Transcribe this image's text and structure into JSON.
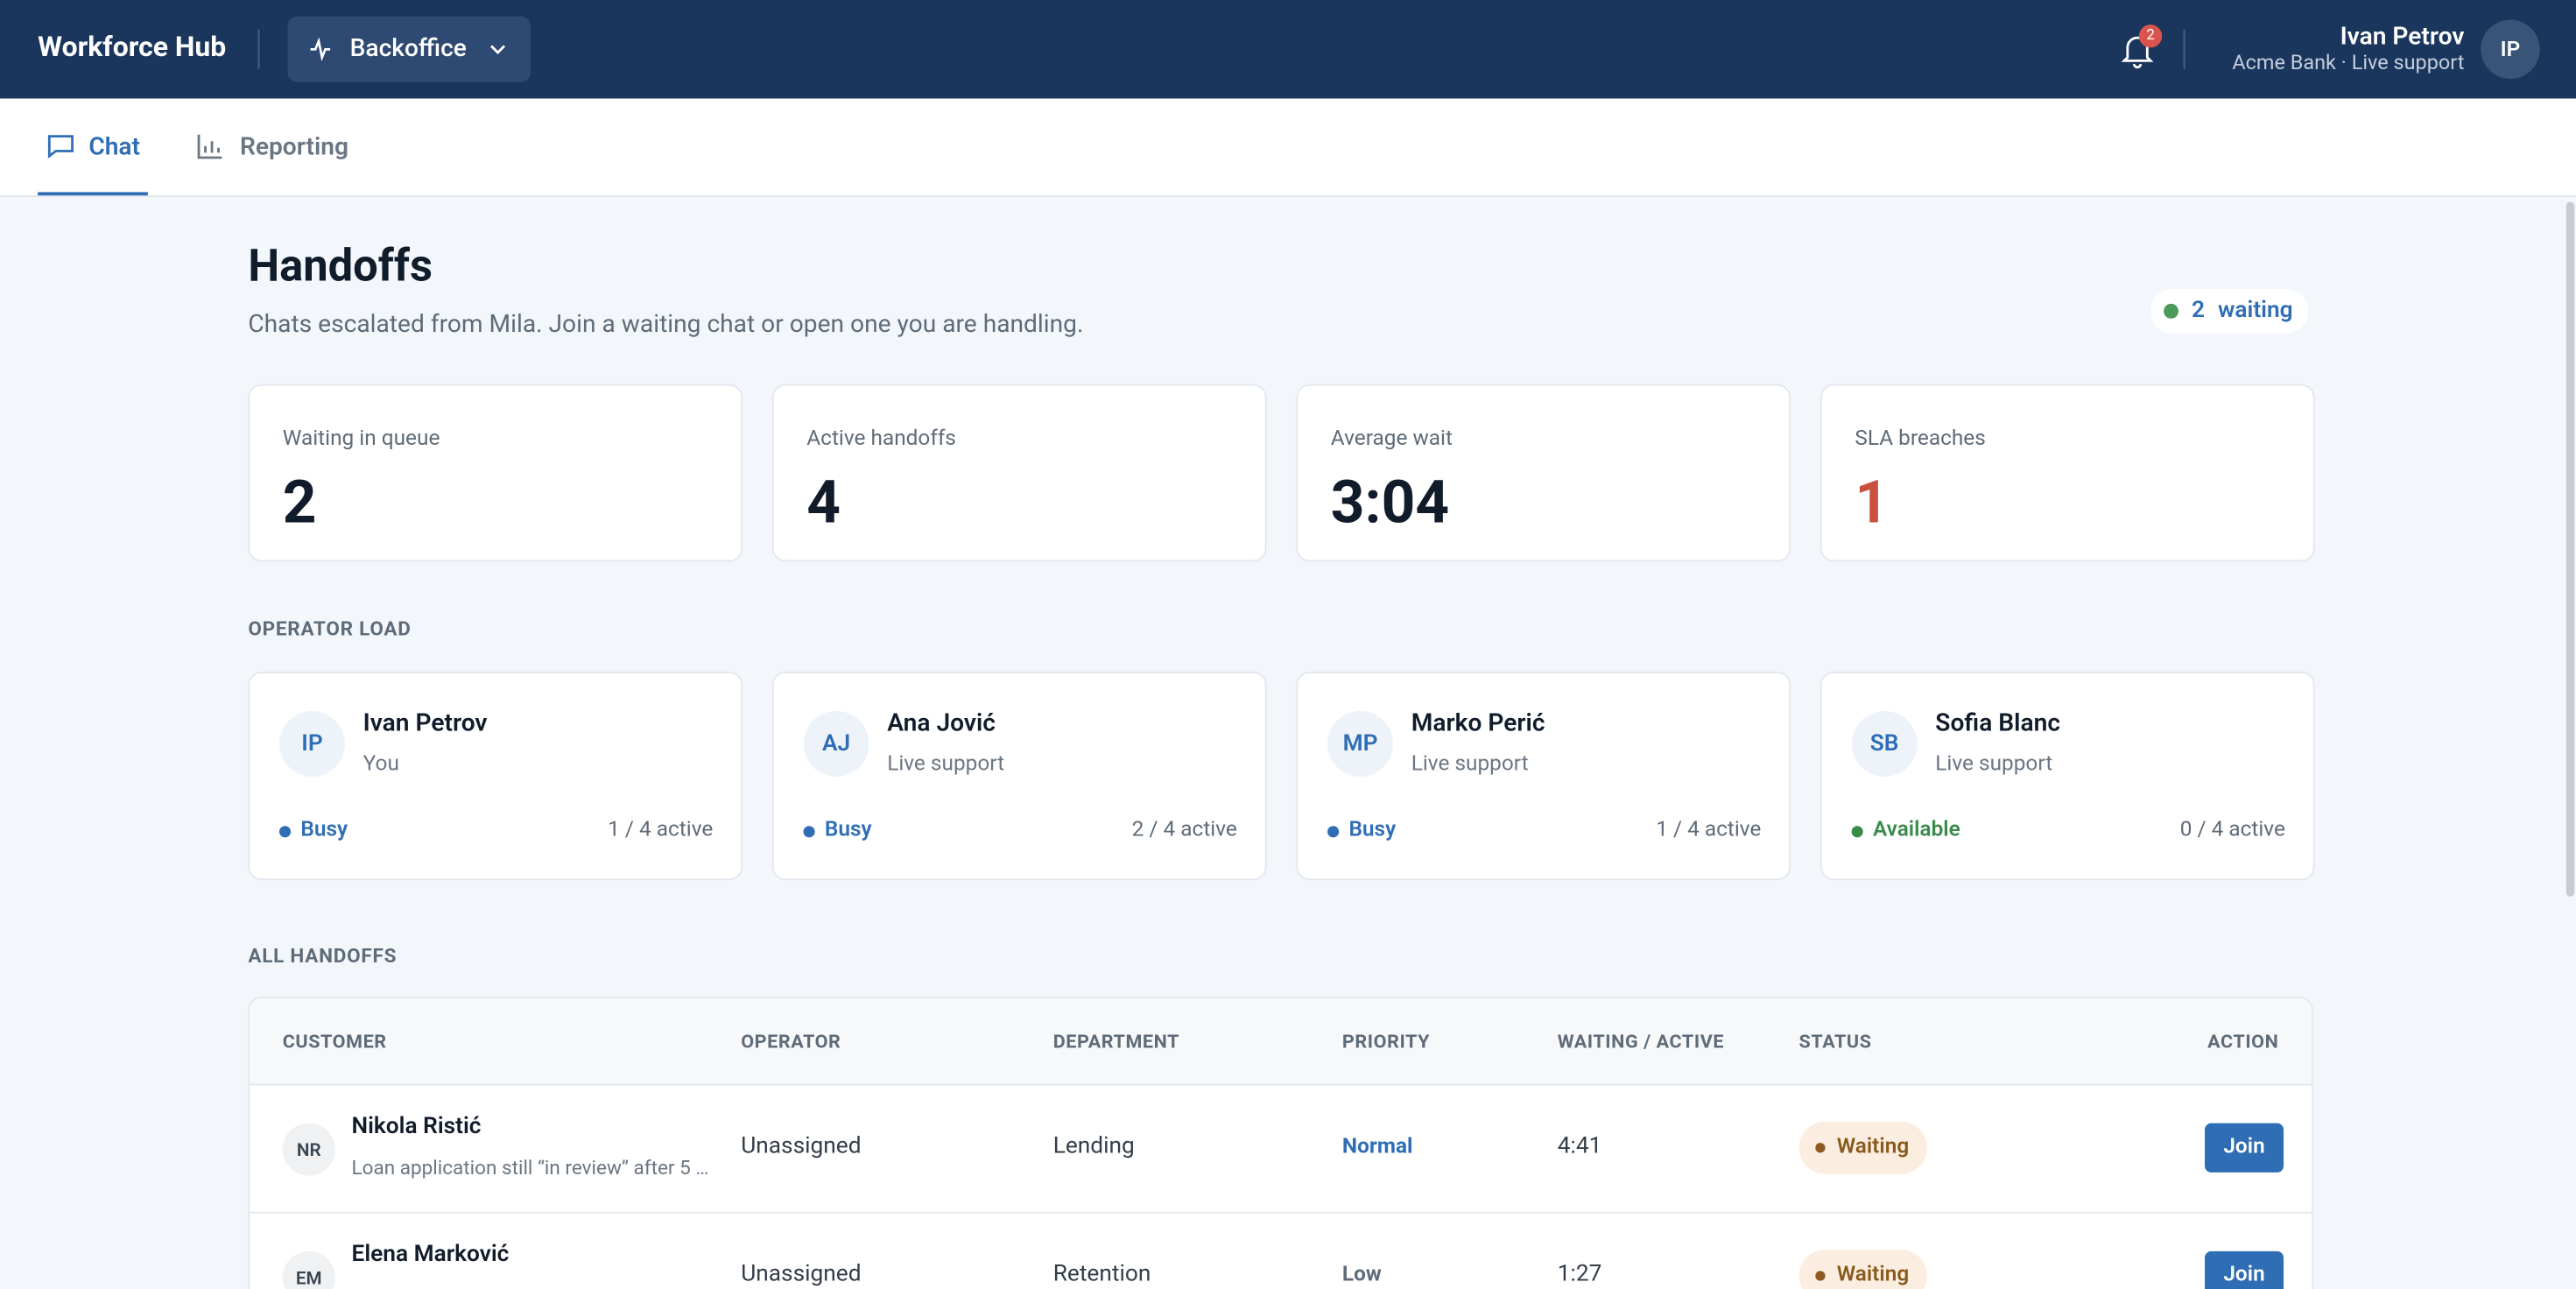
{
  "header": {
    "brand": "Workforce Hub",
    "workspace": "Backoffice",
    "notifications": "2",
    "user_name": "Ivan Petrov",
    "user_org": "Acme Bank · Live support",
    "user_initials": "IP"
  },
  "tabs": [
    "Chat",
    "Reporting"
  ],
  "page": {
    "title": "Handoffs",
    "subtitle": "Chats escalated from Mila. Join a waiting chat or open one you are handling.",
    "waiting_count": "2",
    "waiting_label": "waiting"
  },
  "stats": [
    {
      "label": "Waiting in queue",
      "value": "2"
    },
    {
      "label": "Active handoffs",
      "value": "4"
    },
    {
      "label": "Average wait",
      "value": "3:04"
    },
    {
      "label": "SLA breaches",
      "value": "1"
    }
  ],
  "operator_load": {
    "heading": "OPERATOR LOAD",
    "operators": [
      {
        "initials": "IP",
        "name": "Ivan Petrov",
        "role": "You",
        "status": "Busy",
        "load": "1 / 4 active"
      },
      {
        "initials": "AJ",
        "name": "Ana Jović",
        "role": "Live support",
        "status": "Busy",
        "load": "2 / 4 active"
      },
      {
        "initials": "MP",
        "name": "Marko Perić",
        "role": "Live support",
        "status": "Busy",
        "load": "1 / 4 active"
      },
      {
        "initials": "SB",
        "name": "Sofia Blanc",
        "role": "Live support",
        "status": "Available",
        "load": "0 / 4 active"
      }
    ]
  },
  "handoffs": {
    "heading": "ALL HANDOFFS",
    "columns": [
      "CUSTOMER",
      "OPERATOR",
      "DEPARTMENT",
      "PRIORITY",
      "WAITING / ACTIVE",
      "STATUS",
      "ACTION"
    ],
    "rows": [
      {
        "initials": "NR",
        "name": "Nikola Ristić",
        "note": "Loan application still “in review” after 5 …",
        "operator": "Unassigned",
        "department": "Lending",
        "priority": "Normal",
        "time": "4:41",
        "status": "Waiting",
        "action": "Join"
      },
      {
        "initials": "EM",
        "name": "Elena Marković",
        "operator": "Unassigned",
        "department": "Retention",
        "priority": "Low",
        "time": "1:27",
        "status": "Waiting",
        "action": "Join"
      }
    ]
  }
}
